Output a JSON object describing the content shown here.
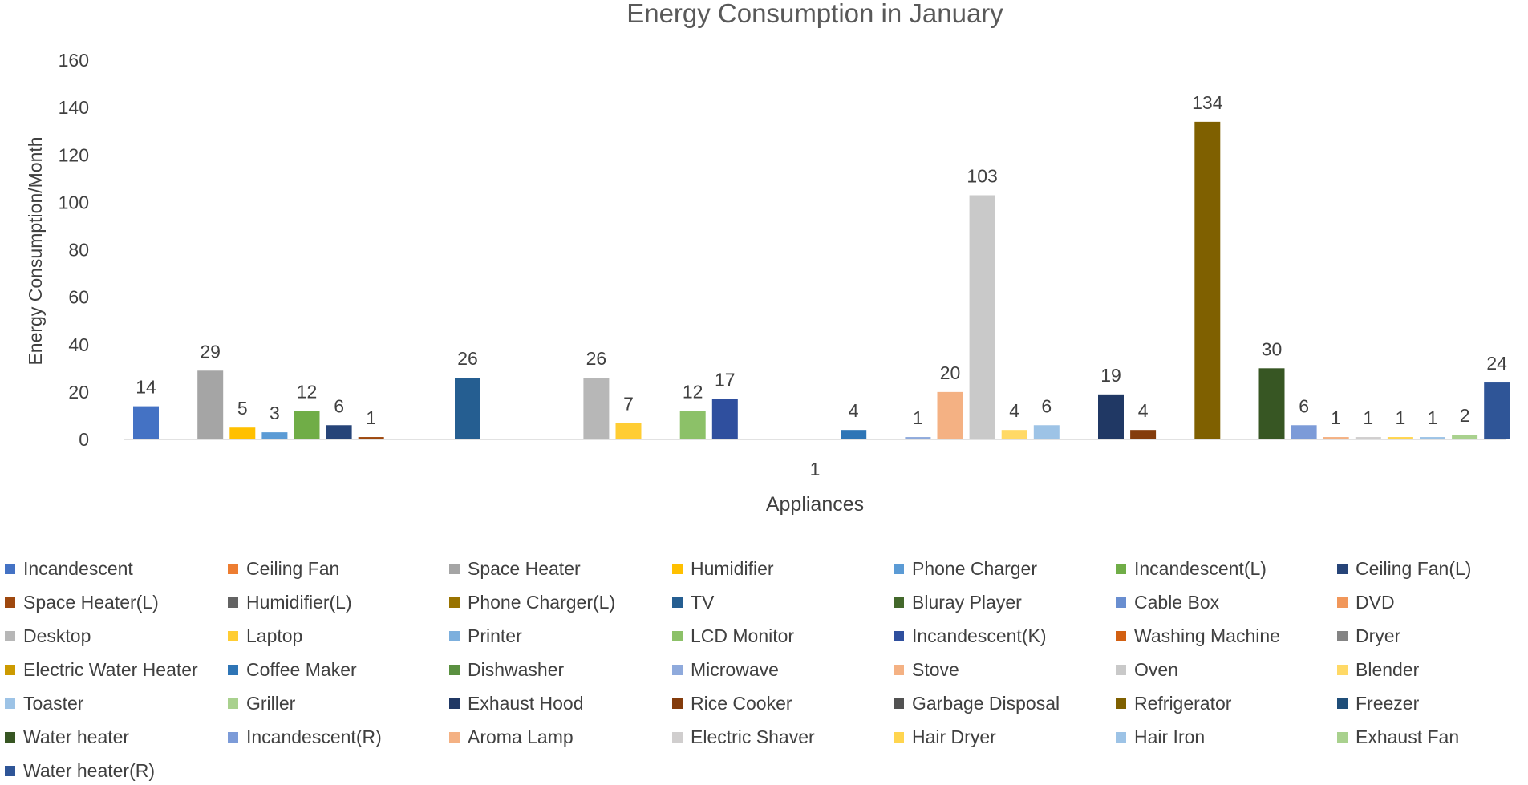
{
  "chart_data": {
    "type": "bar",
    "title": "Energy Consumption  in January",
    "xlabel": "Appliances",
    "ylabel": "Energy Consumption/Month",
    "categories": [
      "1"
    ],
    "ylim": [
      0,
      160
    ],
    "yticks": [
      0,
      20,
      40,
      60,
      80,
      100,
      120,
      140,
      160
    ],
    "grid": false,
    "legend_position": "bottom",
    "series": [
      {
        "name": "Incandescent",
        "values": [
          14
        ],
        "label": "14",
        "color": "#4472C4"
      },
      {
        "name": "Ceiling Fan",
        "values": [
          0
        ],
        "label": "",
        "color": "#ED7D31"
      },
      {
        "name": "Space Heater",
        "values": [
          29
        ],
        "label": "29",
        "color": "#A5A5A5"
      },
      {
        "name": "Humidifier",
        "values": [
          5
        ],
        "label": "5",
        "color": "#FFC000"
      },
      {
        "name": "Phone Charger",
        "values": [
          3
        ],
        "label": "3",
        "color": "#5B9BD5"
      },
      {
        "name": "Incandescent(L)",
        "values": [
          12
        ],
        "label": "12",
        "color": "#70AD47"
      },
      {
        "name": "Ceiling Fan(L)",
        "values": [
          6
        ],
        "label": "6",
        "color": "#264478"
      },
      {
        "name": "Space Heater(L)",
        "values": [
          1
        ],
        "label": "1",
        "color": "#9E480E"
      },
      {
        "name": "Humidifier(L)",
        "values": [
          0
        ],
        "label": "",
        "color": "#636363"
      },
      {
        "name": "Phone Charger(L)",
        "values": [
          0
        ],
        "label": "",
        "color": "#997300"
      },
      {
        "name": "TV",
        "values": [
          26
        ],
        "label": "26",
        "color": "#255E91"
      },
      {
        "name": "Bluray Player",
        "values": [
          0
        ],
        "label": "",
        "color": "#43682B"
      },
      {
        "name": "Cable Box",
        "values": [
          0
        ],
        "label": "",
        "color": "#698ED0"
      },
      {
        "name": "DVD",
        "values": [
          0
        ],
        "label": "",
        "color": "#F1975A"
      },
      {
        "name": "Desktop",
        "values": [
          26
        ],
        "label": "26",
        "color": "#B7B7B7"
      },
      {
        "name": "Laptop",
        "values": [
          7
        ],
        "label": "7",
        "color": "#FFCD33"
      },
      {
        "name": "Printer",
        "values": [
          0
        ],
        "label": "",
        "color": "#7CAFDD"
      },
      {
        "name": "LCD Monitor",
        "values": [
          12
        ],
        "label": "12",
        "color": "#8CC168"
      },
      {
        "name": "Incandescent(K)",
        "values": [
          17
        ],
        "label": "17",
        "color": "#2F4F9E"
      },
      {
        "name": "Washing Machine",
        "values": [
          0
        ],
        "label": "",
        "color": "#D26012"
      },
      {
        "name": "Dryer",
        "values": [
          0
        ],
        "label": "",
        "color": "#848484"
      },
      {
        "name": "Electric Water Heater",
        "values": [
          0
        ],
        "label": "",
        "color": "#CC9A00"
      },
      {
        "name": "Coffee Maker",
        "values": [
          4
        ],
        "label": "4",
        "color": "#2E75B6"
      },
      {
        "name": "Dishwasher",
        "values": [
          0
        ],
        "label": "",
        "color": "#5A9040"
      },
      {
        "name": "Microwave",
        "values": [
          1
        ],
        "label": "1",
        "color": "#8FAADC"
      },
      {
        "name": "Stove",
        "values": [
          20
        ],
        "label": "20",
        "color": "#F4B183"
      },
      {
        "name": "Oven",
        "values": [
          103
        ],
        "label": "103",
        "color": "#C9C9C9"
      },
      {
        "name": "Blender",
        "values": [
          4
        ],
        "label": "4",
        "color": "#FFD966"
      },
      {
        "name": "Toaster",
        "values": [
          6
        ],
        "label": "6",
        "color": "#9DC3E6"
      },
      {
        "name": "Griller",
        "values": [
          0
        ],
        "label": "",
        "color": "#A9D18E"
      },
      {
        "name": "Exhaust Hood",
        "values": [
          19
        ],
        "label": "19",
        "color": "#203864"
      },
      {
        "name": "Rice Cooker",
        "values": [
          4
        ],
        "label": "4",
        "color": "#843C0C"
      },
      {
        "name": "Garbage Disposal",
        "values": [
          0
        ],
        "label": "",
        "color": "#525252"
      },
      {
        "name": "Refrigerator",
        "values": [
          134
        ],
        "label": "134",
        "color": "#7F6000"
      },
      {
        "name": "Freezer",
        "values": [
          0
        ],
        "label": "",
        "color": "#1F4E79"
      },
      {
        "name": "Water heater",
        "values": [
          30
        ],
        "label": "30",
        "color": "#375623"
      },
      {
        "name": "Incandescent(R)",
        "values": [
          6
        ],
        "label": "6",
        "color": "#7C9BD8"
      },
      {
        "name": "Aroma Lamp",
        "values": [
          1
        ],
        "label": "1",
        "color": "#F4B183"
      },
      {
        "name": "Electric Shaver",
        "values": [
          1
        ],
        "label": "1",
        "color": "#D0CECE"
      },
      {
        "name": "Hair Dryer",
        "values": [
          1
        ],
        "label": "1",
        "color": "#FFD54F"
      },
      {
        "name": "Hair Iron",
        "values": [
          1
        ],
        "label": "1",
        "color": "#9DC3E6"
      },
      {
        "name": "Exhaust Fan",
        "values": [
          2
        ],
        "label": "2",
        "color": "#A9D18E"
      },
      {
        "name": "Water heater(R)",
        "values": [
          24
        ],
        "label": "24",
        "color": "#2F5597"
      }
    ]
  }
}
